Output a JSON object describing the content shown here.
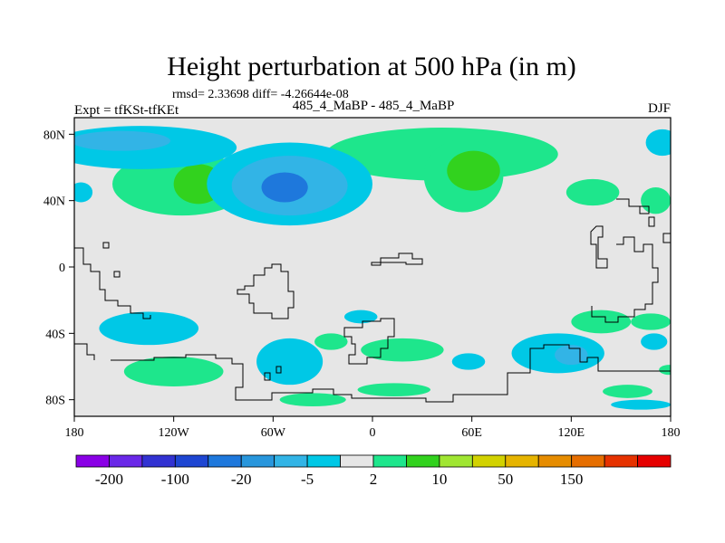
{
  "chart_data": {
    "type": "contour-map",
    "title": "Height perturbation at 500 hPa (in m)",
    "stats_line": "rmsd= 2.33698 diff= -4.26644e-08",
    "subtitle": "485_4_MaBP - 485_4_MaBP",
    "left_label": "Expt = tfKSt-tfKEt",
    "right_label": "DJF",
    "x_tick_labels": [
      "180",
      "120W",
      "60W",
      "0",
      "60E",
      "120E",
      "180"
    ],
    "x_tick_values": [
      -180,
      -120,
      -60,
      0,
      60,
      120,
      180
    ],
    "y_tick_labels": [
      "80N",
      "40N",
      "0",
      "40S",
      "80S"
    ],
    "y_tick_values": [
      80,
      40,
      0,
      -40,
      -80
    ],
    "xlim": [
      -180,
      180
    ],
    "ylim": [
      -90,
      90
    ],
    "colorbar": {
      "labels": [
        "-200",
        "-100",
        "-20",
        "-5",
        "2",
        "10",
        "50",
        "150"
      ],
      "label_boundary_index": [
        1,
        3,
        5,
        7,
        9,
        11,
        13,
        15
      ],
      "colors": [
        "#8a00e6",
        "#6a28e8",
        "#3232d2",
        "#1e46d2",
        "#1e78dc",
        "#2896dc",
        "#32b4e6",
        "#00c8e6",
        "#e6e6e6",
        "#1ee68c",
        "#32d21e",
        "#a0e632",
        "#d2d200",
        "#e6b400",
        "#e68c00",
        "#e66e00",
        "#e63200",
        "#e60000"
      ]
    },
    "series": [
      {
        "name": "positive 2 to 10 m",
        "color": "#1ee68c",
        "regions": [
          {
            "lon": -115,
            "lat": 50,
            "rlon": 42,
            "rlat": 19
          },
          {
            "lon": 42,
            "lat": 68,
            "rlon": 70,
            "rlat": 16
          },
          {
            "lon": 55,
            "lat": 55,
            "rlon": 24,
            "rlat": 22
          },
          {
            "lon": 133,
            "lat": 45,
            "rlon": 16,
            "rlat": 8
          },
          {
            "lon": 171,
            "lat": 40,
            "rlon": 9,
            "rlat": 8
          },
          {
            "lon": -120,
            "lat": -63,
            "rlon": 30,
            "rlat": 9
          },
          {
            "lon": -25,
            "lat": -45,
            "rlon": 10,
            "rlat": 5
          },
          {
            "lon": 18,
            "lat": -50,
            "rlon": 25,
            "rlat": 7
          },
          {
            "lon": 13,
            "lat": -74,
            "rlon": 22,
            "rlat": 4
          },
          {
            "lon": -36,
            "lat": -80,
            "rlon": 20,
            "rlat": 4
          },
          {
            "lon": 138,
            "lat": -33,
            "rlon": 18,
            "rlat": 7
          },
          {
            "lon": 168,
            "lat": -33,
            "rlon": 12,
            "rlat": 5
          },
          {
            "lon": 154,
            "lat": -75,
            "rlon": 15,
            "rlat": 4
          },
          {
            "lon": 179,
            "lat": -62,
            "rlon": 6,
            "rlat": 3
          }
        ]
      },
      {
        "name": "positive 10 to 50 m",
        "color": "#32d21e",
        "regions": [
          {
            "lon": -105,
            "lat": 50,
            "rlon": 15,
            "rlat": 12
          },
          {
            "lon": 61,
            "lat": 58,
            "rlon": 16,
            "rlat": 12
          }
        ]
      },
      {
        "name": "negative -5 to -2 m",
        "color": "#00c8e6",
        "regions": [
          {
            "lon": -140,
            "lat": 72,
            "rlon": 58,
            "rlat": 13
          },
          {
            "lon": -50,
            "lat": 50,
            "rlon": 50,
            "rlat": 25
          },
          {
            "lon": 175,
            "lat": 75,
            "rlon": 10,
            "rlat": 8
          },
          {
            "lon": -176,
            "lat": 45,
            "rlon": 7,
            "rlat": 6
          },
          {
            "lon": -135,
            "lat": -37,
            "rlon": 30,
            "rlat": 10
          },
          {
            "lon": -50,
            "lat": -57,
            "rlon": 20,
            "rlat": 14
          },
          {
            "lon": 58,
            "lat": -57,
            "rlon": 10,
            "rlat": 5
          },
          {
            "lon": -7,
            "lat": -30,
            "rlon": 10,
            "rlat": 4
          },
          {
            "lon": 112,
            "lat": -52,
            "rlon": 28,
            "rlat": 12
          },
          {
            "lon": 170,
            "lat": -45,
            "rlon": 8,
            "rlat": 5
          },
          {
            "lon": 162,
            "lat": -83,
            "rlon": 18,
            "rlat": 3
          }
        ]
      },
      {
        "name": "negative -20 to -5 m",
        "color": "#32b4e6",
        "regions": [
          {
            "lon": -152,
            "lat": 76,
            "rlon": 30,
            "rlat": 6
          },
          {
            "lon": -50,
            "lat": 49,
            "rlon": 35,
            "rlat": 18
          },
          {
            "lon": 120,
            "lat": -53,
            "rlon": 10,
            "rlat": 6
          }
        ]
      },
      {
        "name": "negative -100 to -20 m",
        "color": "#1e78dc",
        "regions": [
          {
            "lon": -53,
            "lat": 48,
            "rlon": 14,
            "rlat": 9
          }
        ]
      }
    ]
  }
}
